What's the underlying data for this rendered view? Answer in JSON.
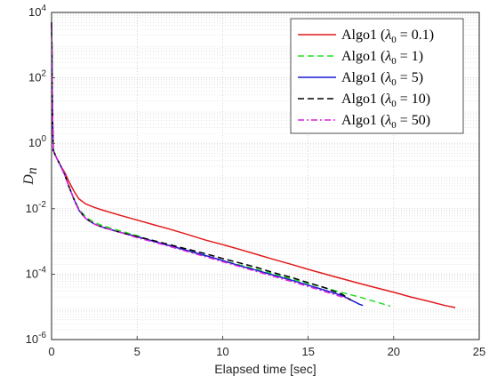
{
  "chart_data": {
    "type": "line",
    "xlabel": "Elapsed time [sec]",
    "ylabel": "D_n",
    "ylabel_main": "D",
    "ylabel_sub": "n",
    "xlim": [
      0,
      25
    ],
    "ylim": [
      1e-06,
      10000.0
    ],
    "yscale": "log",
    "grid": true,
    "minor_grid": true,
    "legend_position": "top-right",
    "x_ticks": [
      0,
      5,
      10,
      15,
      20,
      25
    ],
    "x_tick_labels": [
      "0",
      "5",
      "10",
      "15",
      "20",
      "25"
    ],
    "y_ticks": [
      1e-06,
      0.0001,
      0.01,
      1,
      100,
      10000
    ],
    "y_tick_labels": [
      {
        "base": "10",
        "exp": "-6"
      },
      {
        "base": "10",
        "exp": "-4"
      },
      {
        "base": "10",
        "exp": "-2"
      },
      {
        "base": "10",
        "exp": "0"
      },
      {
        "base": "10",
        "exp": "2"
      },
      {
        "base": "10",
        "exp": "4"
      }
    ],
    "series": [
      {
        "name": "Algo1 (λ0 = 0.1)",
        "legend": {
          "prefix": "Algo1 (",
          "lambda": "λ",
          "sub": "0",
          "suffix": " = 0.1)"
        },
        "color": "#e41a1c",
        "dash": "",
        "x": [
          0,
          0.02,
          0.05,
          0.1,
          0.3,
          0.5,
          0.8,
          1.0,
          1.3,
          1.6,
          2.0,
          2.5,
          3,
          4,
          5,
          6,
          7,
          8,
          9,
          10,
          11,
          12,
          13,
          14,
          15,
          16,
          17,
          18,
          19,
          20,
          21,
          22,
          23,
          23.6
        ],
        "y": [
          5000,
          800,
          10,
          0.6,
          0.35,
          0.22,
          0.12,
          0.07,
          0.035,
          0.02,
          0.014,
          0.011,
          0.009,
          0.0063,
          0.0045,
          0.0032,
          0.0023,
          0.0016,
          0.0011,
          0.0008,
          0.00057,
          0.0004,
          0.00028,
          0.0002,
          0.00014,
          0.0001,
          7.2e-05,
          5.2e-05,
          3.8e-05,
          2.8e-05,
          2e-05,
          1.5e-05,
          1.1e-05,
          9.5e-06
        ]
      },
      {
        "name": "Algo1 (λ0 = 1)",
        "legend": {
          "prefix": "Algo1 (",
          "lambda": "λ",
          "sub": "0",
          "suffix": " = 1)"
        },
        "color": "#22dd22",
        "dash": "7,4",
        "x": [
          0,
          0.02,
          0.05,
          0.1,
          0.3,
          0.5,
          0.8,
          1.0,
          1.3,
          1.6,
          2.0,
          2.5,
          3,
          4,
          5,
          6,
          7,
          8,
          9,
          10,
          11,
          12,
          13,
          14,
          15,
          16,
          17,
          18,
          19,
          19.8
        ],
        "y": [
          5000,
          800,
          10,
          0.6,
          0.35,
          0.22,
          0.1,
          0.05,
          0.02,
          0.01,
          0.0055,
          0.0038,
          0.003,
          0.0021,
          0.0015,
          0.001,
          0.00072,
          0.0005,
          0.00036,
          0.00026,
          0.00019,
          0.00014,
          0.0001,
          7.2e-05,
          5.2e-05,
          3.8e-05,
          2.7e-05,
          2e-05,
          1.4e-05,
          1.05e-05
        ]
      },
      {
        "name": "Algo1 (λ0 = 5)",
        "legend": {
          "prefix": "Algo1 (",
          "lambda": "λ",
          "sub": "0",
          "suffix": " = 5)"
        },
        "color": "#1a1ad6",
        "dash": "",
        "x": [
          0,
          0.02,
          0.05,
          0.1,
          0.3,
          0.5,
          0.8,
          1.0,
          1.3,
          1.6,
          2.0,
          2.5,
          3,
          4,
          5,
          6,
          7,
          8,
          9,
          10,
          11,
          12,
          13,
          14,
          15,
          16,
          17,
          18,
          18.2
        ],
        "y": [
          5000,
          800,
          10,
          0.6,
          0.35,
          0.22,
          0.1,
          0.05,
          0.02,
          0.009,
          0.005,
          0.0034,
          0.0027,
          0.0019,
          0.0014,
          0.001,
          0.00072,
          0.00052,
          0.00037,
          0.00026,
          0.00018,
          0.00013,
          9.2e-05,
          6.6e-05,
          4.6e-05,
          3.2e-05,
          2.2e-05,
          1.2e-05,
          1.1e-05
        ]
      },
      {
        "name": "Algo1 (λ0 = 10)",
        "legend": {
          "prefix": "Algo1 (",
          "lambda": "λ",
          "sub": "0",
          "suffix": " = 10)"
        },
        "color": "#000000",
        "dash": "7,4",
        "x": [
          0,
          0.02,
          0.05,
          0.1,
          0.3,
          0.5,
          0.8,
          1.0,
          1.3,
          1.6,
          2.0,
          2.5,
          3,
          4,
          5,
          6,
          7,
          8,
          9,
          10,
          11,
          12,
          13,
          14,
          15,
          16,
          17,
          17.5
        ],
        "y": [
          5000,
          800,
          10,
          0.6,
          0.35,
          0.22,
          0.1,
          0.05,
          0.02,
          0.009,
          0.005,
          0.0034,
          0.0027,
          0.0019,
          0.0014,
          0.00105,
          0.00077,
          0.00057,
          0.00042,
          0.0003,
          0.00022,
          0.00016,
          0.00011,
          8e-05,
          5.5e-05,
          3.8e-05,
          2.4e-05,
          1.6e-05
        ]
      },
      {
        "name": "Algo1 (λ0 = 50)",
        "legend": {
          "prefix": "Algo1 (",
          "lambda": "λ",
          "sub": "0",
          "suffix": " = 50)"
        },
        "color": "#e020e0",
        "dash": "7,3,2,3",
        "x": [
          0,
          0.02,
          0.05,
          0.1,
          0.3,
          0.5,
          0.8,
          1.0,
          1.3,
          1.6,
          2.0,
          2.5,
          3,
          4,
          5,
          6,
          7,
          8,
          9,
          10,
          11,
          12,
          13,
          14,
          15,
          16,
          17,
          17.3
        ],
        "y": [
          5000,
          800,
          10,
          0.6,
          0.35,
          0.22,
          0.1,
          0.05,
          0.02,
          0.009,
          0.005,
          0.0034,
          0.0027,
          0.0019,
          0.0013,
          0.00095,
          0.00068,
          0.00048,
          0.00034,
          0.00024,
          0.00017,
          0.00012,
          8.5e-05,
          6e-05,
          4.2e-05,
          2.9e-05,
          2e-05,
          1.8e-05
        ]
      }
    ]
  }
}
